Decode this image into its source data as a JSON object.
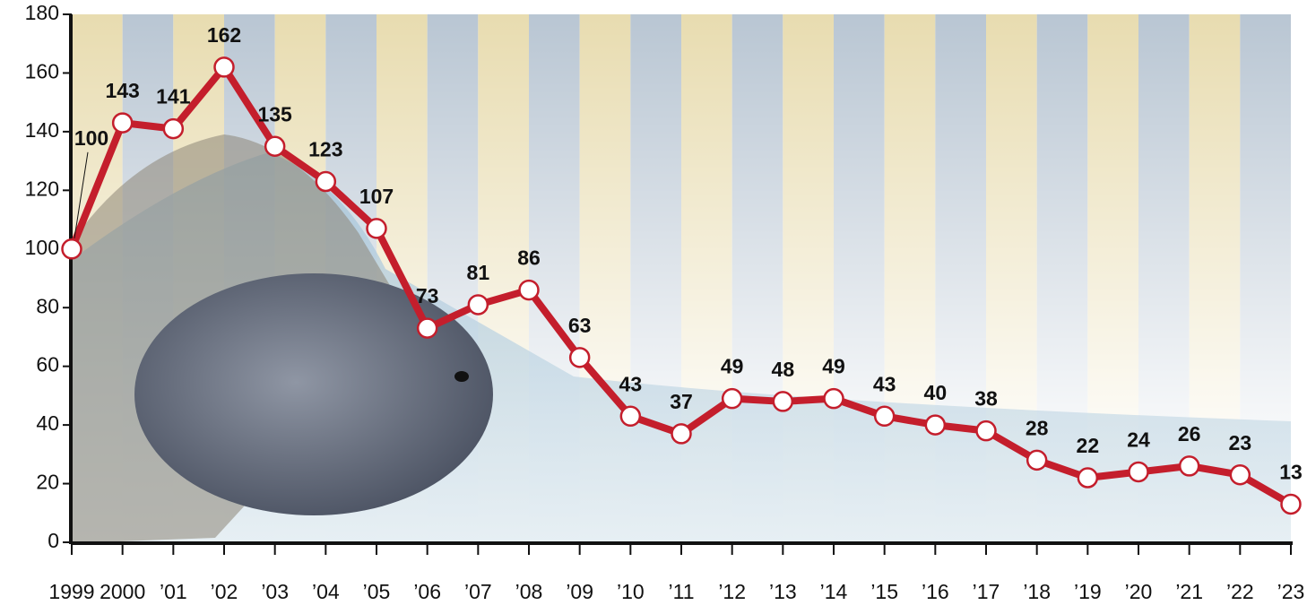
{
  "chart_data": {
    "type": "line",
    "categories": [
      "1999",
      "2000",
      "’01",
      "’02",
      "’03",
      "’04",
      "’05",
      "’06",
      "’07",
      "’08",
      "’09",
      "’10",
      "’11",
      "’12",
      "’13",
      "’14",
      "’15",
      "’16",
      "’17",
      "’18",
      "’19",
      "’20",
      "’21",
      "’22",
      "’23"
    ],
    "values": [
      100,
      143,
      141,
      162,
      135,
      123,
      107,
      73,
      81,
      86,
      63,
      43,
      37,
      49,
      48,
      49,
      43,
      40,
      38,
      28,
      22,
      24,
      26,
      23,
      13
    ],
    "color": "#c41e2c",
    "ylim": [
      0,
      180
    ],
    "yticks": [
      0,
      20,
      40,
      60,
      80,
      100,
      120,
      140,
      160,
      180
    ]
  }
}
